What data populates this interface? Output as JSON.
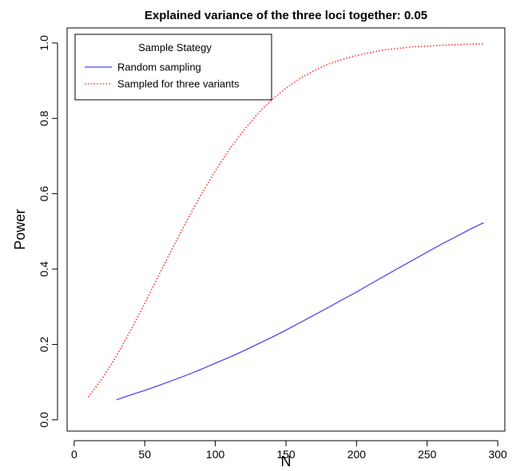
{
  "chart_data": {
    "type": "line",
    "title": "Explained variance of the three loci together: 0.05",
    "xlabel": "N",
    "ylabel": "Power",
    "xlim": [
      -5,
      305
    ],
    "ylim": [
      -0.03,
      1.04
    ],
    "x_ticks": [
      0,
      50,
      100,
      150,
      200,
      250,
      300
    ],
    "x_tick_labels": [
      "0",
      "50",
      "100",
      "150",
      "200",
      "250",
      "300"
    ],
    "y_ticks": [
      0.0,
      0.2,
      0.4,
      0.6,
      0.8,
      1.0
    ],
    "y_tick_labels": [
      "0.0",
      "0.2",
      "0.4",
      "0.6",
      "0.8",
      "1.0"
    ],
    "grid": false,
    "legend": {
      "title": "Sample Stategy",
      "position": "top-left"
    },
    "series": [
      {
        "name": "Random sampling",
        "color": "#4b4bf5",
        "line_style": "solid",
        "x": [
          30,
          40,
          50,
          60,
          70,
          80,
          90,
          100,
          110,
          120,
          130,
          140,
          150,
          160,
          170,
          180,
          190,
          200,
          210,
          220,
          230,
          240,
          250,
          260,
          270,
          280,
          290
        ],
        "y": [
          0.053,
          0.066,
          0.078,
          0.091,
          0.105,
          0.119,
          0.134,
          0.15,
          0.166,
          0.183,
          0.201,
          0.219,
          0.238,
          0.258,
          0.278,
          0.298,
          0.319,
          0.339,
          0.361,
          0.382,
          0.403,
          0.424,
          0.445,
          0.466,
          0.485,
          0.505,
          0.523
        ]
      },
      {
        "name": "Sampled for three variants",
        "color": "#ff3b3b",
        "line_style": "dotted",
        "x": [
          10,
          20,
          30,
          40,
          50,
          60,
          70,
          80,
          90,
          100,
          110,
          120,
          130,
          140,
          150,
          160,
          170,
          180,
          190,
          200,
          210,
          220,
          230,
          240,
          250,
          260,
          270,
          280,
          290
        ],
        "y": [
          0.06,
          0.11,
          0.17,
          0.237,
          0.309,
          0.384,
          0.458,
          0.53,
          0.598,
          0.661,
          0.718,
          0.768,
          0.812,
          0.849,
          0.88,
          0.906,
          0.927,
          0.944,
          0.957,
          0.967,
          0.975,
          0.982,
          0.986,
          0.99,
          0.992,
          0.994,
          0.996,
          0.997,
          0.998
        ]
      }
    ]
  }
}
